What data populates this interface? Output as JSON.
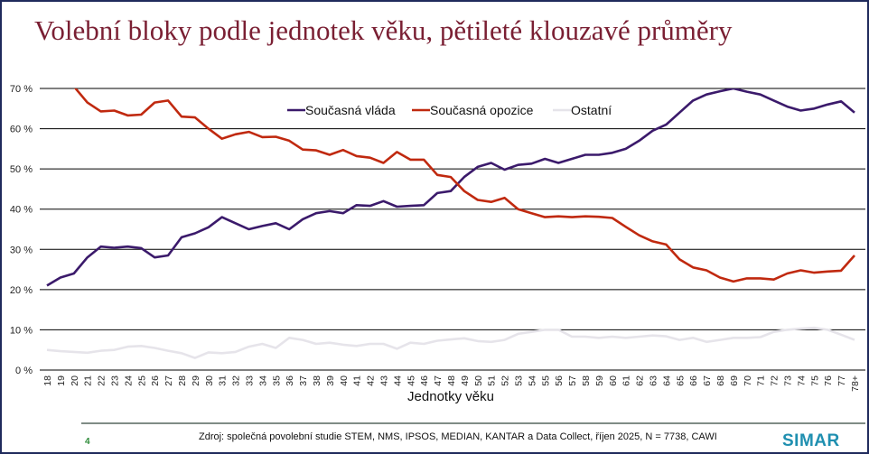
{
  "title": "Volební bloky podle jednotek věku, pětileté klouzavé průměry",
  "footer": {
    "page_number": "4",
    "source": "Zdroj: společná povolební studie STEM, NMS, IPSOS, MEDIAN, KANTAR a Data Collect, říjen 2025, N = 7738, CAWI",
    "logo": "SIMAR"
  },
  "chart_data": {
    "type": "line",
    "title": "Volební bloky podle jednotek věku, pětileté klouzavé průměry",
    "xlabel": "Jednotky věku",
    "ylabel": "",
    "ylim": [
      0,
      70
    ],
    "yticks": [
      0,
      10,
      20,
      30,
      40,
      50,
      60,
      70
    ],
    "ytick_labels": [
      "0 %",
      "10 %",
      "20 %",
      "30 %",
      "40 %",
      "50 %",
      "60 %",
      "70 %"
    ],
    "grid": true,
    "legend_position": "top-center",
    "categories": [
      "18",
      "19",
      "20",
      "21",
      "22",
      "23",
      "24",
      "25",
      "26",
      "27",
      "28",
      "29",
      "30",
      "31",
      "32",
      "33",
      "34",
      "35",
      "36",
      "37",
      "38",
      "39",
      "40",
      "41",
      "42",
      "43",
      "44",
      "45",
      "46",
      "47",
      "48",
      "49",
      "50",
      "51",
      "52",
      "53",
      "54",
      "55",
      "56",
      "57",
      "58",
      "59",
      "60",
      "61",
      "62",
      "63",
      "64",
      "65",
      "66",
      "67",
      "68",
      "69",
      "70",
      "71",
      "72",
      "73",
      "74",
      "75",
      "76",
      "77",
      "78+"
    ],
    "series": [
      {
        "name": "Současná vláda",
        "color": "#3b1a6b",
        "values": [
          21,
          23,
          24,
          28,
          30.7,
          30.4,
          30.7,
          30.3,
          28,
          28.5,
          33,
          34,
          35.5,
          38,
          36.5,
          35,
          35.8,
          36.5,
          35,
          37.5,
          39,
          39.5,
          39,
          41,
          40.8,
          42,
          40.6,
          40.8,
          41,
          44,
          44.5,
          48,
          50.5,
          51.5,
          49.8,
          51,
          51.3,
          52.5,
          51.5,
          52.5,
          53.5,
          53.5,
          54,
          55,
          57,
          59.5,
          61,
          64,
          67,
          68.5,
          69.3,
          70,
          69.2,
          68.5,
          67,
          65.5,
          64.5,
          65,
          66,
          66.8,
          64
        ]
      },
      {
        "name": "Současná opozice",
        "color": "#c0290f",
        "values": [
          null,
          null,
          70.5,
          66.5,
          64.3,
          64.5,
          63.3,
          63.5,
          66.5,
          67,
          63,
          62.8,
          60,
          57.5,
          58.6,
          59.2,
          57.9,
          58,
          57,
          54.8,
          54.6,
          53.5,
          54.7,
          53.2,
          52.8,
          51.5,
          54.2,
          52.3,
          52.3,
          48.5,
          48,
          44.5,
          42.3,
          41.8,
          42.8,
          40,
          39,
          38,
          38.2,
          38,
          38.2,
          38.1,
          37.8,
          35.6,
          33.5,
          32,
          31.2,
          27.5,
          25.5,
          24.8,
          23,
          22,
          22.8,
          22.8,
          22.5,
          24,
          24.8,
          24.2,
          24.5,
          24.7,
          28.5
        ]
      },
      {
        "name": "Ostatní",
        "color": "#e6e4ea",
        "values": [
          5,
          4.7,
          4.5,
          4.3,
          4.8,
          5,
          5.8,
          6,
          5.5,
          4.8,
          4.2,
          3,
          4.4,
          4.2,
          4.5,
          5.8,
          6.5,
          5.5,
          8,
          7.5,
          6.5,
          6.8,
          6.3,
          6,
          6.5,
          6.5,
          5.3,
          6.8,
          6.5,
          7.3,
          7.6,
          7.9,
          7.2,
          7,
          7.5,
          9,
          9.5,
          10,
          10,
          8.3,
          8.3,
          8,
          8.3,
          8,
          8.3,
          8.6,
          8.4,
          7.5,
          8,
          7,
          7.5,
          8,
          8,
          8.2,
          9.5,
          10,
          10.3,
          10.5,
          10,
          8.8,
          7.5
        ]
      }
    ]
  }
}
